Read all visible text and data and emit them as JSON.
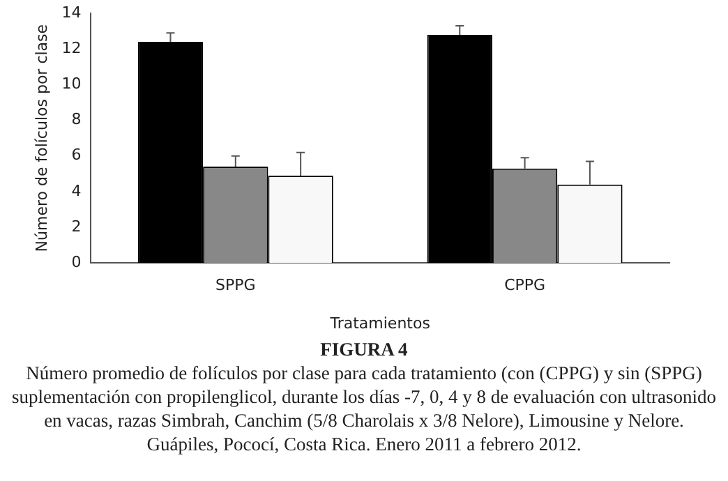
{
  "chart_data": {
    "type": "bar",
    "title": "FIGURA 4",
    "xlabel": "Tratamientos",
    "ylabel": "Número de folículos por clase",
    "categories": [
      "SPPG",
      "CPPG"
    ],
    "series": [
      {
        "color": "#000000",
        "values": [
          12.4,
          12.8
        ],
        "errors": [
          [
            12.4,
            12.9
          ],
          [
            12.8,
            13.3
          ]
        ]
      },
      {
        "color": "#888888",
        "values": [
          5.4,
          5.3
        ],
        "errors": [
          [
            5.4,
            6.0
          ],
          [
            5.3,
            5.9
          ]
        ]
      },
      {
        "color": "#f8f8f8",
        "values": [
          4.9,
          4.4
        ],
        "errors": [
          [
            4.9,
            6.2
          ],
          [
            4.4,
            5.7
          ]
        ]
      }
    ],
    "ylim": [
      0,
      14
    ],
    "yticks": [
      0,
      2,
      4,
      6,
      8,
      10,
      12,
      14
    ],
    "grid": false,
    "legend": false,
    "annotations": [
      "Número promedio de folículos por clase para cada tratamiento (con (CPPG) y sin (SPPG) suplementación con propilenglicol, durante los días -7, 0, 4 y 8 de evaluación con ultrasonido en vacas, razas Simbrah, Canchim (5/8 Charolais x 3/8 Nelore), Limousine y Nelore. Guápiles, Pococí, Costa Rica. Enero 2011 a febrero 2012."
    ]
  }
}
